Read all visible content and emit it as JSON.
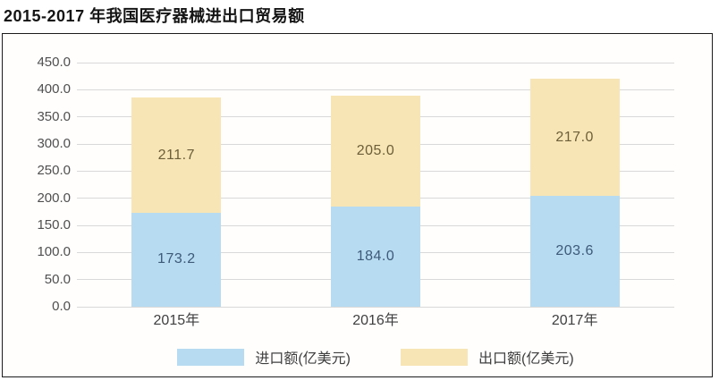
{
  "title": "2015-2017 年我国医疗器械进出口贸易额",
  "colors": {
    "import_bar": "#b7dbf1",
    "export_bar": "#f7e5b5",
    "import_label": "#3d5a78",
    "export_label": "#6c5e38",
    "gridline": "#d9d9d9",
    "axis_text": "#4f4f4f",
    "frame_border": "#1c1c1c"
  },
  "chart_data": {
    "type": "bar",
    "stacked": true,
    "title": "2015-2017 年我国医疗器械进出口贸易额",
    "categories": [
      "2015年",
      "2016年",
      "2017年"
    ],
    "series": [
      {
        "name": "进口额(亿美元)",
        "values": [
          173.2,
          184.0,
          203.6
        ],
        "color": "#b7dbf1",
        "label_color": "#3d5a78"
      },
      {
        "name": "出口额(亿美元)",
        "values": [
          211.7,
          205.0,
          217.0
        ],
        "color": "#f7e5b5",
        "label_color": "#6c5e38"
      }
    ],
    "xlabel": "",
    "ylabel": "",
    "ylim": [
      0,
      450
    ],
    "ytick_values": [
      0,
      50,
      100,
      150,
      200,
      250,
      300,
      350,
      400,
      450
    ],
    "ytick_labels": [
      "0.0",
      "50.0",
      "100.0",
      "150.0",
      "200.0",
      "250.0",
      "300.0",
      "350.0",
      "400.0",
      "450.0"
    ],
    "grid": true,
    "legend_position": "bottom"
  }
}
